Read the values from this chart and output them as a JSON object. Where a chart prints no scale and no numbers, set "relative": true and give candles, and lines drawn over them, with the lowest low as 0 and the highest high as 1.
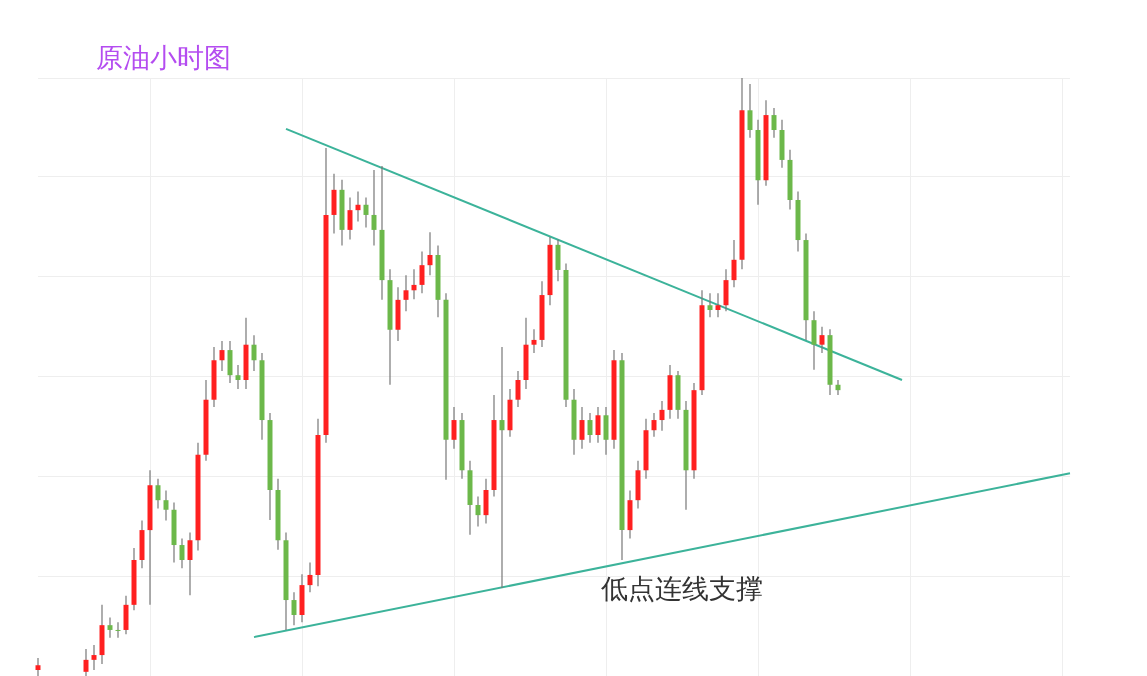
{
  "chart_data": {
    "type": "candlestick",
    "title": "原油小时图",
    "relative": true,
    "grid": true,
    "tick_labels": false,
    "annotations": [
      "低点连线支撑"
    ],
    "categories": [
      null,
      null,
      null,
      null,
      null,
      null,
      null,
      null,
      null,
      null,
      null,
      null,
      null,
      null,
      null,
      null,
      null,
      null,
      null,
      null,
      null,
      null,
      null,
      null,
      null,
      null,
      null,
      null,
      null,
      null,
      null,
      null,
      null,
      null,
      null,
      null,
      null,
      null,
      null,
      null,
      null,
      null,
      null,
      null,
      null,
      null,
      null,
      null,
      null,
      null,
      null,
      null,
      null,
      null,
      null,
      null,
      null,
      null,
      null,
      null,
      null,
      null,
      null,
      null,
      null,
      null,
      null,
      null,
      null,
      null,
      null,
      null,
      null,
      null,
      null,
      null,
      null,
      null,
      null,
      null,
      null,
      null,
      null,
      null,
      null,
      null,
      null,
      null,
      null,
      null,
      null,
      null,
      null,
      null,
      null,
      null,
      null,
      null,
      null,
      null,
      null,
      null,
      null,
      null,
      null,
      null,
      null,
      null,
      null,
      null,
      null,
      null,
      null,
      null,
      null,
      null,
      null,
      null,
      null,
      null,
      null,
      null,
      null,
      null,
      null,
      null,
      null,
      null,
      null,
      null
    ],
    "ohlc": [
      [
        0.01,
        0.03,
        0.0,
        0.018
      ],
      null,
      null,
      null,
      null,
      null,
      [
        0.007,
        0.045,
        0.0,
        0.027
      ],
      [
        0.027,
        0.052,
        0.01,
        0.035
      ],
      [
        0.035,
        0.119,
        0.02,
        0.085
      ],
      [
        0.085,
        0.098,
        0.064,
        0.077
      ],
      [
        0.077,
        0.09,
        0.064,
        0.077
      ],
      [
        0.077,
        0.134,
        0.07,
        0.119
      ],
      [
        0.119,
        0.214,
        0.11,
        0.194
      ],
      [
        0.194,
        0.26,
        0.18,
        0.244
      ],
      [
        0.244,
        0.344,
        0.119,
        0.319
      ],
      [
        0.319,
        0.33,
        0.28,
        0.294
      ],
      [
        0.294,
        0.31,
        0.26,
        0.278
      ],
      [
        0.278,
        0.29,
        0.19,
        0.219
      ],
      [
        0.219,
        0.23,
        0.18,
        0.194
      ],
      [
        0.194,
        0.24,
        0.135,
        0.227
      ],
      [
        0.227,
        0.39,
        0.21,
        0.37
      ],
      [
        0.37,
        0.495,
        0.36,
        0.462
      ],
      [
        0.462,
        0.55,
        0.45,
        0.528
      ],
      [
        0.528,
        0.56,
        0.51,
        0.545
      ],
      [
        0.545,
        0.56,
        0.49,
        0.503
      ],
      [
        0.503,
        0.52,
        0.48,
        0.495
      ],
      [
        0.495,
        0.599,
        0.48,
        0.554
      ],
      [
        0.554,
        0.57,
        0.51,
        0.528
      ],
      [
        0.528,
        0.54,
        0.395,
        0.428
      ],
      [
        0.428,
        0.44,
        0.261,
        0.311
      ],
      [
        0.311,
        0.33,
        0.211,
        0.227
      ],
      [
        0.227,
        0.24,
        0.077,
        0.127
      ],
      [
        0.127,
        0.14,
        0.085,
        0.102
      ],
      [
        0.102,
        0.17,
        0.09,
        0.152
      ],
      [
        0.152,
        0.19,
        0.14,
        0.169
      ],
      [
        0.169,
        0.43,
        0.15,
        0.403
      ],
      [
        0.403,
        0.883,
        0.39,
        0.771
      ],
      [
        0.771,
        0.84,
        0.74,
        0.813
      ],
      [
        0.813,
        0.83,
        0.72,
        0.746
      ],
      [
        0.746,
        0.8,
        0.73,
        0.779
      ],
      [
        0.779,
        0.81,
        0.76,
        0.788
      ],
      [
        0.788,
        0.8,
        0.75,
        0.771
      ],
      [
        0.771,
        0.846,
        0.72,
        0.746
      ],
      [
        0.746,
        0.853,
        0.629,
        0.662
      ],
      [
        0.662,
        0.68,
        0.487,
        0.579
      ],
      [
        0.579,
        0.65,
        0.56,
        0.629
      ],
      [
        0.629,
        0.67,
        0.61,
        0.645
      ],
      [
        0.645,
        0.68,
        0.63,
        0.654
      ],
      [
        0.654,
        0.71,
        0.64,
        0.687
      ],
      [
        0.687,
        0.742,
        0.67,
        0.704
      ],
      [
        0.704,
        0.72,
        0.6,
        0.629
      ],
      [
        0.629,
        0.64,
        0.328,
        0.395
      ],
      [
        0.395,
        0.45,
        0.38,
        0.428
      ],
      [
        0.428,
        0.44,
        0.33,
        0.344
      ],
      [
        0.344,
        0.36,
        0.236,
        0.286
      ],
      [
        0.286,
        0.3,
        0.25,
        0.269
      ],
      [
        0.269,
        0.33,
        0.255,
        0.311
      ],
      [
        0.311,
        0.47,
        0.3,
        0.428
      ],
      [
        0.428,
        0.55,
        0.147,
        0.411
      ],
      [
        0.411,
        0.48,
        0.4,
        0.462
      ],
      [
        0.462,
        0.51,
        0.45,
        0.495
      ],
      [
        0.495,
        0.599,
        0.48,
        0.554
      ],
      [
        0.554,
        0.58,
        0.54,
        0.562
      ],
      [
        0.562,
        0.66,
        0.55,
        0.637
      ],
      [
        0.637,
        0.734,
        0.62,
        0.721
      ],
      [
        0.721,
        0.73,
        0.66,
        0.679
      ],
      [
        0.679,
        0.69,
        0.45,
        0.462
      ],
      [
        0.462,
        0.48,
        0.37,
        0.395
      ],
      [
        0.395,
        0.45,
        0.38,
        0.428
      ],
      [
        0.428,
        0.44,
        0.39,
        0.403
      ],
      [
        0.403,
        0.45,
        0.39,
        0.436
      ],
      [
        0.436,
        0.45,
        0.37,
        0.395
      ],
      [
        0.395,
        0.545,
        0.38,
        0.528
      ],
      [
        0.528,
        0.54,
        0.194,
        0.244
      ],
      [
        0.244,
        0.31,
        0.23,
        0.294
      ],
      [
        0.294,
        0.36,
        0.28,
        0.344
      ],
      [
        0.344,
        0.43,
        0.33,
        0.411
      ],
      [
        0.411,
        0.44,
        0.4,
        0.428
      ],
      [
        0.428,
        0.46,
        0.41,
        0.445
      ],
      [
        0.445,
        0.52,
        0.43,
        0.503
      ],
      [
        0.503,
        0.51,
        0.43,
        0.445
      ],
      [
        0.445,
        0.46,
        0.278,
        0.344
      ],
      [
        0.344,
        0.49,
        0.33,
        0.478
      ],
      [
        0.478,
        0.645,
        0.47,
        0.62
      ],
      [
        0.62,
        0.64,
        0.6,
        0.612
      ],
      [
        0.612,
        0.64,
        0.6,
        0.62
      ],
      [
        0.62,
        0.68,
        0.61,
        0.662
      ],
      [
        0.662,
        0.729,
        0.65,
        0.696
      ],
      [
        0.696,
        1.0,
        0.68,
        0.946
      ],
      [
        0.946,
        0.99,
        0.9,
        0.913
      ],
      [
        0.913,
        0.93,
        0.788,
        0.829
      ],
      [
        0.829,
        0.963,
        0.82,
        0.938
      ],
      [
        0.938,
        0.95,
        0.9,
        0.913
      ],
      [
        0.913,
        0.93,
        0.85,
        0.863
      ],
      [
        0.863,
        0.88,
        0.78,
        0.796
      ],
      [
        0.796,
        0.81,
        0.71,
        0.729
      ],
      [
        0.729,
        0.74,
        0.562,
        0.595
      ],
      [
        0.595,
        0.61,
        0.512,
        0.554
      ],
      [
        0.554,
        0.584,
        0.54,
        0.57
      ],
      [
        0.57,
        0.58,
        0.47,
        0.487
      ],
      [
        0.487,
        0.495,
        0.47,
        0.478
      ],
      null,
      null,
      null,
      null,
      null,
      null,
      null,
      null,
      null,
      null,
      null,
      null,
      null,
      null,
      null,
      null,
      null,
      null,
      null,
      null,
      null,
      null,
      null,
      null,
      null,
      null,
      null,
      null,
      null
    ],
    "colors": [
      "#ff2020",
      null,
      null,
      null,
      null,
      null,
      "#ff2020",
      "#ff2020",
      "#ff2020",
      "#6cb84a",
      "#6cb84a",
      "#ff2020",
      "#ff2020",
      "#ff2020",
      "#ff2020",
      "#6cb84a",
      "#6cb84a",
      "#6cb84a",
      "#6cb84a",
      "#ff2020",
      "#ff2020",
      "#ff2020",
      "#ff2020",
      "#ff2020",
      "#6cb84a",
      "#6cb84a",
      "#ff2020",
      "#6cb84a",
      "#6cb84a",
      "#6cb84a",
      "#6cb84a",
      "#6cb84a",
      "#6cb84a",
      "#ff2020",
      "#ff2020",
      "#ff2020",
      "#ff2020",
      "#ff2020",
      "#6cb84a",
      "#ff2020",
      "#ff2020",
      "#6cb84a",
      "#6cb84a",
      "#6cb84a",
      "#6cb84a",
      "#ff2020",
      "#ff2020",
      "#ff2020",
      "#ff2020",
      "#ff2020",
      "#6cb84a",
      "#6cb84a",
      "#ff2020",
      "#6cb84a",
      "#6cb84a",
      "#6cb84a",
      "#ff2020",
      "#ff2020",
      "#6cb84a",
      "#ff2020",
      "#ff2020",
      "#ff2020",
      "#ff2020",
      "#ff2020",
      "#ff2020",
      "#6cb84a",
      "#6cb84a",
      "#6cb84a",
      "#ff2020",
      "#6cb84a",
      "#ff2020",
      "#6cb84a",
      "#ff2020",
      "#6cb84a",
      "#ff2020",
      "#ff2020",
      "#ff2020",
      "#ff2020",
      "#ff2020",
      "#ff2020",
      "#6cb84a",
      "#6cb84a",
      "#ff2020",
      "#ff2020",
      "#6cb84a",
      "#ff2020",
      "#ff2020",
      "#ff2020",
      "#ff2020",
      "#6cb84a",
      "#6cb84a",
      "#ff2020",
      "#6cb84a",
      "#6cb84a",
      "#6cb84a",
      "#6cb84a",
      "#6cb84a",
      "#6cb84a",
      "#ff2020",
      "#6cb84a",
      "#6cb84a",
      null,
      null,
      null,
      null,
      null,
      null,
      null,
      null,
      null,
      null,
      null,
      null,
      null,
      null,
      null,
      null,
      null,
      null,
      null,
      null,
      null,
      null,
      null,
      null,
      null,
      null,
      null,
      null,
      null
    ],
    "series": [
      {
        "type": "line",
        "color": "#3cb39a",
        "values": [
          null,
          null,
          null,
          null,
          null,
          null,
          null,
          null,
          null,
          null,
          null,
          null,
          null,
          null,
          null,
          null,
          null,
          null,
          null,
          null,
          null,
          null,
          null,
          null,
          null,
          null,
          null,
          0.065,
          null,
          null,
          null,
          null,
          null,
          null,
          null,
          null,
          null,
          null,
          null,
          null,
          null,
          null,
          null,
          null,
          null,
          null,
          null,
          null,
          null,
          null,
          null,
          null,
          null,
          null,
          null,
          null,
          null,
          null,
          null,
          null,
          null,
          null,
          null,
          null,
          null,
          null,
          null,
          null,
          null,
          null,
          null,
          null,
          null,
          null,
          null,
          null,
          null,
          null,
          null,
          null,
          null,
          null,
          null,
          null,
          null,
          null,
          null,
          null,
          null,
          null,
          null,
          null,
          null,
          null,
          null,
          null,
          null,
          null,
          null,
          null,
          null,
          null,
          null,
          null,
          null,
          null,
          null,
          null,
          null,
          null,
          null,
          null,
          null,
          null,
          null,
          null,
          null,
          null,
          null,
          null,
          null,
          null,
          null,
          null,
          null,
          null,
          null,
          null,
          null,
          0.339
        ]
      },
      {
        "type": "line",
        "color": "#3cb39a",
        "values": [
          null,
          null,
          null,
          null,
          null,
          null,
          null,
          null,
          null,
          null,
          null,
          null,
          null,
          null,
          null,
          null,
          null,
          null,
          null,
          null,
          null,
          null,
          null,
          null,
          null,
          null,
          null,
          null,
          null,
          null,
          null,
          0.915,
          null,
          null,
          null,
          null,
          null,
          null,
          null,
          null,
          null,
          null,
          null,
          null,
          null,
          null,
          null,
          null,
          null,
          null,
          null,
          null,
          null,
          null,
          null,
          null,
          null,
          null,
          null,
          null,
          null,
          null,
          null,
          null,
          null,
          null,
          null,
          null,
          null,
          null,
          null,
          null,
          null,
          null,
          null,
          null,
          null,
          null,
          null,
          null,
          null,
          null,
          null,
          null,
          null,
          null,
          null,
          null,
          null,
          null,
          null,
          null,
          null,
          null,
          null,
          null,
          null,
          null,
          null,
          null,
          null,
          null,
          null,
          null,
          null,
          null,
          null,
          null,
          0.495,
          null,
          null,
          null,
          null,
          null,
          null,
          null,
          null,
          null,
          null,
          null,
          null,
          null,
          null,
          null,
          null,
          null,
          null,
          null,
          null,
          null
        ]
      }
    ]
  }
}
